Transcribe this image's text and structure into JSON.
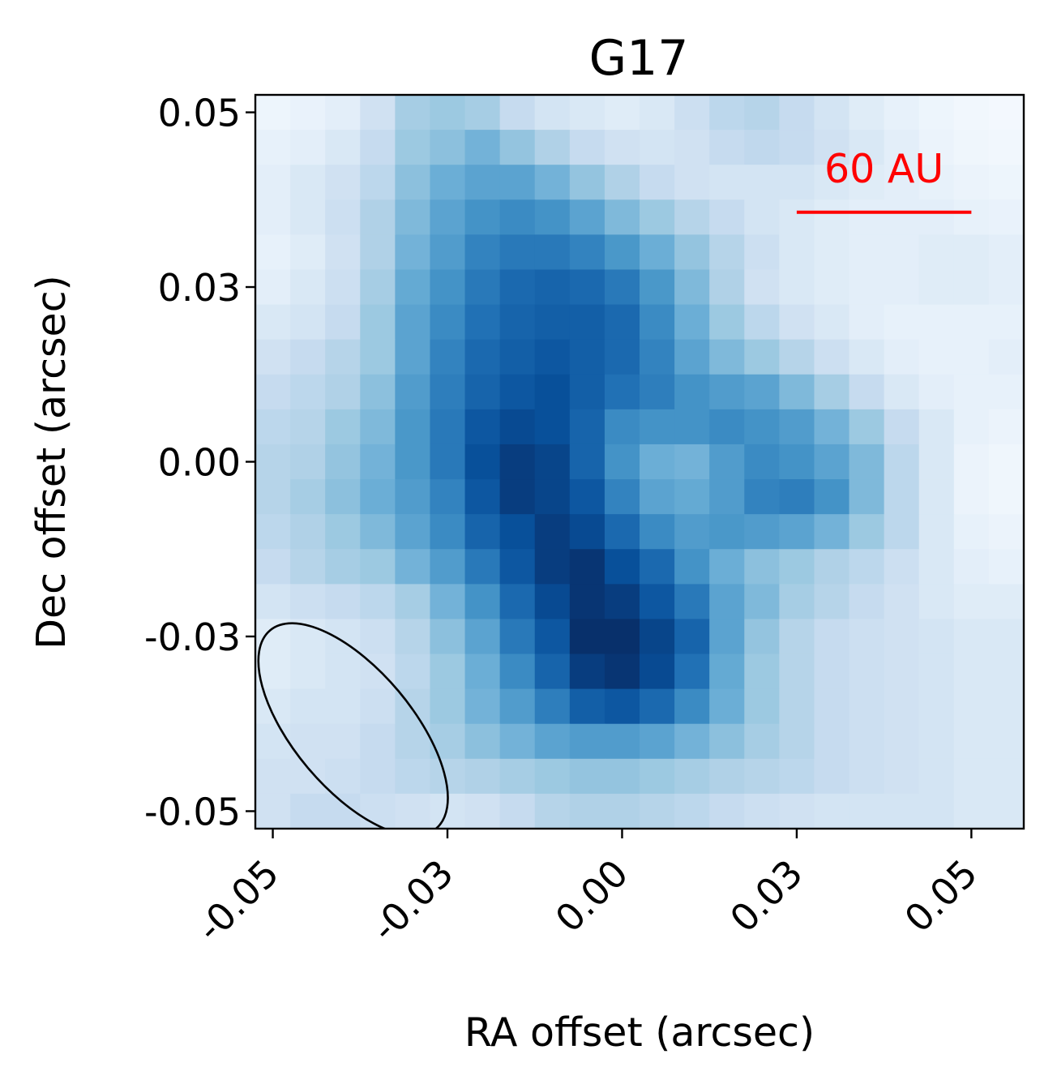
{
  "chart_data": {
    "type": "heatmap",
    "title": "G17",
    "xlabel": "RA offset (arcsec)",
    "ylabel": "Dec offset (arcsec)",
    "xlim": [
      -0.0525,
      0.0575
    ],
    "ylim": [
      -0.0525,
      0.0525
    ],
    "xticks": [
      -0.05,
      -0.025,
      0.0,
      0.025,
      0.05
    ],
    "xtick_labels": [
      "-0.05",
      "-0.03",
      "0.00",
      "0.03",
      "0.05"
    ],
    "yticks": [
      -0.05,
      -0.025,
      0.0,
      0.025,
      0.05
    ],
    "ytick_labels": [
      "-0.05",
      "-0.03",
      "0.00",
      "0.03",
      "0.05"
    ],
    "grid": false,
    "colormap": "Blues",
    "pixel_size_arcsec": 0.005,
    "grid_x_start": -0.0525,
    "grid_y_start": 0.0525,
    "intensity_rows": [
      [
        0.05,
        0.07,
        0.1,
        0.2,
        0.35,
        0.38,
        0.35,
        0.25,
        0.18,
        0.15,
        0.12,
        0.15,
        0.22,
        0.28,
        0.3,
        0.25,
        0.18,
        0.12,
        0.08,
        0.05,
        0.03,
        0.02
      ],
      [
        0.08,
        0.1,
        0.15,
        0.25,
        0.38,
        0.42,
        0.48,
        0.4,
        0.32,
        0.25,
        0.2,
        0.18,
        0.2,
        0.25,
        0.27,
        0.25,
        0.2,
        0.15,
        0.1,
        0.06,
        0.04,
        0.03
      ],
      [
        0.1,
        0.15,
        0.2,
        0.28,
        0.42,
        0.5,
        0.55,
        0.55,
        0.48,
        0.4,
        0.32,
        0.25,
        0.2,
        0.18,
        0.18,
        0.18,
        0.15,
        0.12,
        0.1,
        0.08,
        0.06,
        0.05
      ],
      [
        0.1,
        0.15,
        0.22,
        0.32,
        0.45,
        0.55,
        0.62,
        0.65,
        0.62,
        0.55,
        0.45,
        0.38,
        0.3,
        0.25,
        0.18,
        0.15,
        0.12,
        0.1,
        0.1,
        0.1,
        0.08,
        0.07
      ],
      [
        0.08,
        0.12,
        0.2,
        0.32,
        0.48,
        0.58,
        0.68,
        0.72,
        0.72,
        0.68,
        0.6,
        0.5,
        0.4,
        0.3,
        0.22,
        0.15,
        0.12,
        0.1,
        0.1,
        0.12,
        0.12,
        0.1
      ],
      [
        0.1,
        0.15,
        0.22,
        0.35,
        0.52,
        0.62,
        0.72,
        0.78,
        0.8,
        0.78,
        0.72,
        0.6,
        0.45,
        0.32,
        0.2,
        0.15,
        0.12,
        0.1,
        0.1,
        0.12,
        0.12,
        0.1
      ],
      [
        0.15,
        0.18,
        0.25,
        0.38,
        0.55,
        0.65,
        0.75,
        0.8,
        0.82,
        0.82,
        0.78,
        0.65,
        0.5,
        0.38,
        0.28,
        0.2,
        0.15,
        0.1,
        0.08,
        0.08,
        0.08,
        0.08
      ],
      [
        0.2,
        0.25,
        0.3,
        0.38,
        0.55,
        0.68,
        0.78,
        0.82,
        0.85,
        0.82,
        0.78,
        0.68,
        0.55,
        0.45,
        0.38,
        0.3,
        0.22,
        0.15,
        0.1,
        0.08,
        0.08,
        0.1
      ],
      [
        0.25,
        0.28,
        0.32,
        0.42,
        0.58,
        0.7,
        0.8,
        0.85,
        0.88,
        0.82,
        0.75,
        0.7,
        0.62,
        0.58,
        0.55,
        0.45,
        0.35,
        0.25,
        0.15,
        0.1,
        0.08,
        0.08
      ],
      [
        0.28,
        0.3,
        0.38,
        0.45,
        0.6,
        0.72,
        0.85,
        0.9,
        0.88,
        0.8,
        0.65,
        0.62,
        0.62,
        0.65,
        0.62,
        0.58,
        0.48,
        0.38,
        0.25,
        0.15,
        0.08,
        0.06
      ],
      [
        0.3,
        0.32,
        0.4,
        0.48,
        0.6,
        0.72,
        0.88,
        0.95,
        0.92,
        0.8,
        0.62,
        0.5,
        0.48,
        0.58,
        0.65,
        0.62,
        0.55,
        0.45,
        0.28,
        0.15,
        0.06,
        0.04
      ],
      [
        0.3,
        0.35,
        0.42,
        0.5,
        0.58,
        0.68,
        0.85,
        0.95,
        0.92,
        0.85,
        0.68,
        0.55,
        0.52,
        0.58,
        0.68,
        0.7,
        0.62,
        0.45,
        0.28,
        0.15,
        0.06,
        0.04
      ],
      [
        0.28,
        0.32,
        0.38,
        0.45,
        0.55,
        0.65,
        0.8,
        0.88,
        0.95,
        0.9,
        0.78,
        0.65,
        0.58,
        0.6,
        0.58,
        0.55,
        0.48,
        0.38,
        0.28,
        0.15,
        0.08,
        0.06
      ],
      [
        0.25,
        0.3,
        0.35,
        0.38,
        0.48,
        0.58,
        0.72,
        0.85,
        0.95,
        0.98,
        0.88,
        0.78,
        0.62,
        0.5,
        0.42,
        0.38,
        0.32,
        0.28,
        0.22,
        0.15,
        0.1,
        0.08
      ],
      [
        0.18,
        0.22,
        0.25,
        0.28,
        0.35,
        0.48,
        0.62,
        0.78,
        0.9,
        0.98,
        0.95,
        0.85,
        0.72,
        0.55,
        0.45,
        0.35,
        0.3,
        0.25,
        0.2,
        0.15,
        0.12,
        0.12
      ],
      [
        0.12,
        0.15,
        0.18,
        0.22,
        0.3,
        0.42,
        0.55,
        0.72,
        0.85,
        1.0,
        1.0,
        0.92,
        0.8,
        0.55,
        0.4,
        0.3,
        0.25,
        0.22,
        0.2,
        0.18,
        0.15,
        0.15
      ],
      [
        0.12,
        0.15,
        0.18,
        0.2,
        0.28,
        0.38,
        0.5,
        0.65,
        0.8,
        0.95,
        0.98,
        0.9,
        0.75,
        0.52,
        0.38,
        0.3,
        0.25,
        0.22,
        0.2,
        0.18,
        0.15,
        0.15
      ],
      [
        0.15,
        0.18,
        0.18,
        0.22,
        0.3,
        0.38,
        0.48,
        0.58,
        0.7,
        0.82,
        0.85,
        0.78,
        0.65,
        0.5,
        0.38,
        0.3,
        0.25,
        0.22,
        0.2,
        0.18,
        0.15,
        0.15
      ],
      [
        0.18,
        0.2,
        0.2,
        0.25,
        0.3,
        0.35,
        0.42,
        0.48,
        0.55,
        0.58,
        0.58,
        0.55,
        0.48,
        0.42,
        0.35,
        0.3,
        0.25,
        0.22,
        0.2,
        0.18,
        0.15,
        0.15
      ],
      [
        0.2,
        0.2,
        0.22,
        0.25,
        0.28,
        0.3,
        0.32,
        0.35,
        0.38,
        0.4,
        0.4,
        0.38,
        0.35,
        0.32,
        0.3,
        0.28,
        0.25,
        0.22,
        0.2,
        0.18,
        0.15,
        0.15
      ],
      [
        0.2,
        0.25,
        0.25,
        0.22,
        0.2,
        0.18,
        0.2,
        0.25,
        0.3,
        0.32,
        0.32,
        0.3,
        0.28,
        0.25,
        0.22,
        0.2,
        0.18,
        0.18,
        0.18,
        0.18,
        0.15,
        0.15
      ],
      [
        0.28,
        0.32,
        0.3,
        0.25,
        0.2,
        0.15,
        0.12,
        0.15,
        0.2,
        0.25,
        0.25,
        0.22,
        0.18,
        0.15,
        0.15,
        0.15,
        0.15,
        0.15,
        0.15,
        0.15,
        0.15,
        0.15
      ]
    ],
    "beam": {
      "center": [
        -0.0385,
        -0.0383
      ],
      "semi_axes": [
        0.0085,
        0.0185
      ],
      "orientation": "tilted from upper-left to lower-right",
      "color": "#000000"
    },
    "scale_bar": {
      "label": "60 AU",
      "x_range": [
        0.025,
        0.05
      ],
      "y": 0.0357,
      "color": "#ff0000"
    }
  }
}
